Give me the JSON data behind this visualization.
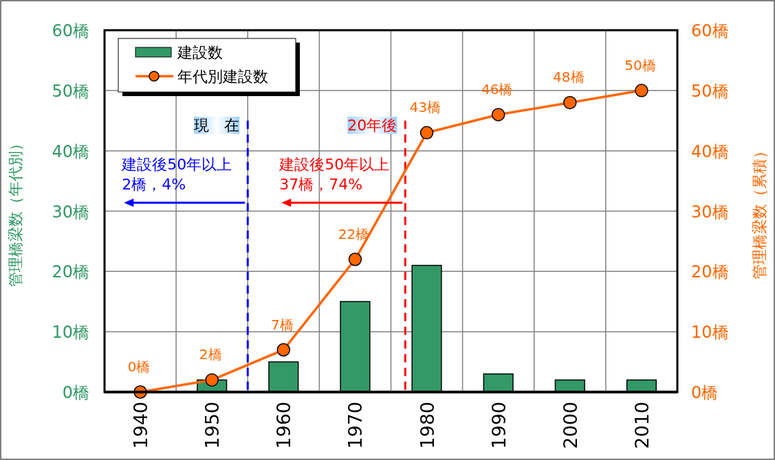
{
  "chart_data": {
    "type": "bar",
    "x": [
      1940,
      1950,
      1960,
      1970,
      1980,
      1990,
      2000,
      2010
    ],
    "xlim": [
      1935,
      2015
    ],
    "xticks": [
      1940,
      {
        "value": 1945,
        "label": null
      },
      1950,
      {
        "value": 1955,
        "label": null
      },
      1960,
      {
        "value": 1965,
        "label": null
      },
      1970,
      {
        "value": 1975,
        "label": null
      },
      1980,
      {
        "value": 1985,
        "label": null
      },
      1990,
      {
        "value": 1995,
        "label": null
      },
      2000,
      {
        "value": 2005,
        "label": null
      },
      2010
    ],
    "ylim": [
      0,
      60
    ],
    "yticks": [
      {
        "value": 0,
        "label": "0橋"
      },
      {
        "value": 10,
        "label": "10橋"
      },
      {
        "value": 20,
        "label": "20橋"
      },
      {
        "value": 30,
        "label": "30橋"
      },
      {
        "value": 40,
        "label": "40橋"
      },
      {
        "value": 50,
        "label": "50橋"
      },
      {
        "value": 60,
        "label": "60橋"
      }
    ],
    "y2lim": [
      0,
      60
    ],
    "y2ticks": [
      {
        "value": 0,
        "label": "0橋"
      },
      {
        "value": 10,
        "label": "10橋"
      },
      {
        "value": 20,
        "label": "20橋"
      },
      {
        "value": 30,
        "label": "30橋"
      },
      {
        "value": 40,
        "label": "40橋"
      },
      {
        "value": 50,
        "label": "50橋"
      },
      {
        "value": 60,
        "label": "60橋"
      }
    ],
    "ylabel": "管理橋梁数（年代別）",
    "y2label": "管理橋梁数（累積）",
    "series": [
      {
        "name": "建設数",
        "type": "bar",
        "color": "#339966",
        "values": [
          0,
          2,
          5,
          15,
          21,
          3,
          2,
          2
        ]
      },
      {
        "name": "年代別建設数",
        "type": "line",
        "axis": "y2",
        "color": "#ff6600",
        "values": [
          0,
          2,
          7,
          22,
          43,
          46,
          48,
          50
        ],
        "value_labels": [
          "0橋",
          "2橋",
          "7橋",
          "22橋",
          "43橋",
          "46橋",
          "48橋",
          "50橋"
        ]
      }
    ],
    "marker": "circle",
    "grid": true,
    "legend": "top left",
    "ref_lines": [
      {
        "axis": "x",
        "value": 1955,
        "label": "現　在",
        "color": "#0000ff",
        "line_style": "dashed"
      },
      {
        "axis": "x",
        "value": 1977,
        "label": "20年後",
        "color": "#ff0000",
        "line_style": "dashed"
      }
    ],
    "annotations": [
      {
        "text": "建設後50年以上\n2橋，4%",
        "x": 1955,
        "y": 31.4
      },
      {
        "text": "建設後50年以上\n37橋，74%",
        "x": 1977,
        "y": 31.4
      }
    ]
  }
}
